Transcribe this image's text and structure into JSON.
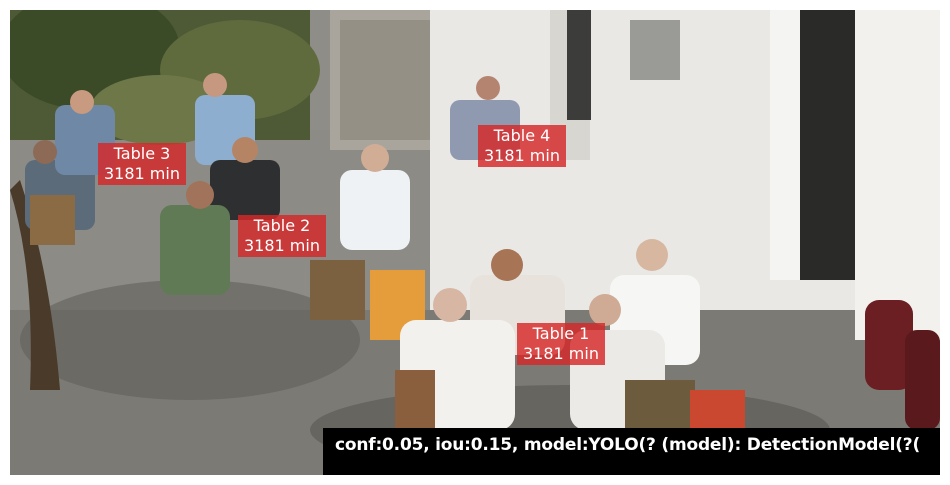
{
  "detections": [
    {
      "name": "Table 3",
      "time": "3181 min"
    },
    {
      "name": "Table 4",
      "time": "3181 min"
    },
    {
      "name": "Table 2",
      "time": "3181 min"
    },
    {
      "name": "Table 1",
      "time": "3181 min"
    }
  ],
  "status": {
    "text": "conf:0.05, iou:0.15, model:YOLO(?   (model): DetectionModel(?("
  },
  "colors": {
    "label_background": "#d62828",
    "label_text": "#ffffff",
    "status_background": "#000000",
    "status_text": "#ffffff"
  }
}
